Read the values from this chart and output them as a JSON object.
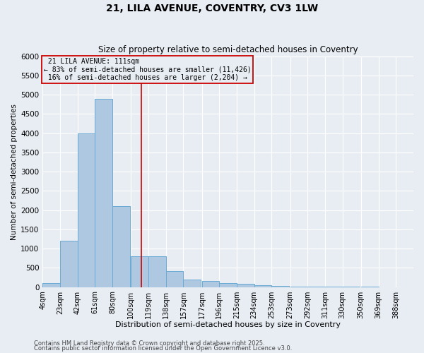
{
  "title1": "21, LILA AVENUE, COVENTRY, CV3 1LW",
  "title2": "Size of property relative to semi-detached houses in Coventry",
  "xlabel": "Distribution of semi-detached houses by size in Coventry",
  "ylabel": "Number of semi-detached properties",
  "property_label": "21 LILA AVENUE: 111sqm",
  "pct_smaller": 83,
  "count_smaller": 11426,
  "pct_larger": 16,
  "count_larger": 2204,
  "bin_labels": [
    "4sqm",
    "23sqm",
    "42sqm",
    "61sqm",
    "80sqm",
    "100sqm",
    "119sqm",
    "138sqm",
    "157sqm",
    "177sqm",
    "196sqm",
    "215sqm",
    "234sqm",
    "253sqm",
    "273sqm",
    "292sqm",
    "311sqm",
    "330sqm",
    "350sqm",
    "369sqm",
    "388sqm"
  ],
  "bin_edges": [
    4,
    23,
    42,
    61,
    80,
    100,
    119,
    138,
    157,
    177,
    196,
    215,
    234,
    253,
    273,
    292,
    311,
    330,
    350,
    369,
    388
  ],
  "bar_heights": [
    100,
    1200,
    4000,
    4900,
    2100,
    800,
    800,
    420,
    200,
    150,
    100,
    80,
    50,
    30,
    20,
    10,
    5,
    3,
    2,
    1
  ],
  "bar_color": "#adc8e0",
  "bar_edge_color": "#6aaad4",
  "vline_color": "#cc0000",
  "vline_x": 111,
  "annotation_box_color": "#cc0000",
  "background_color": "#e8edf4",
  "grid_color": "#ffffff",
  "ylim": [
    0,
    6000
  ],
  "yticks": [
    0,
    500,
    1000,
    1500,
    2000,
    2500,
    3000,
    3500,
    4000,
    4500,
    5000,
    5500,
    6000
  ],
  "footnote1": "Contains HM Land Registry data © Crown copyright and database right 2025.",
  "footnote2": "Contains public sector information licensed under the Open Government Licence v3.0."
}
